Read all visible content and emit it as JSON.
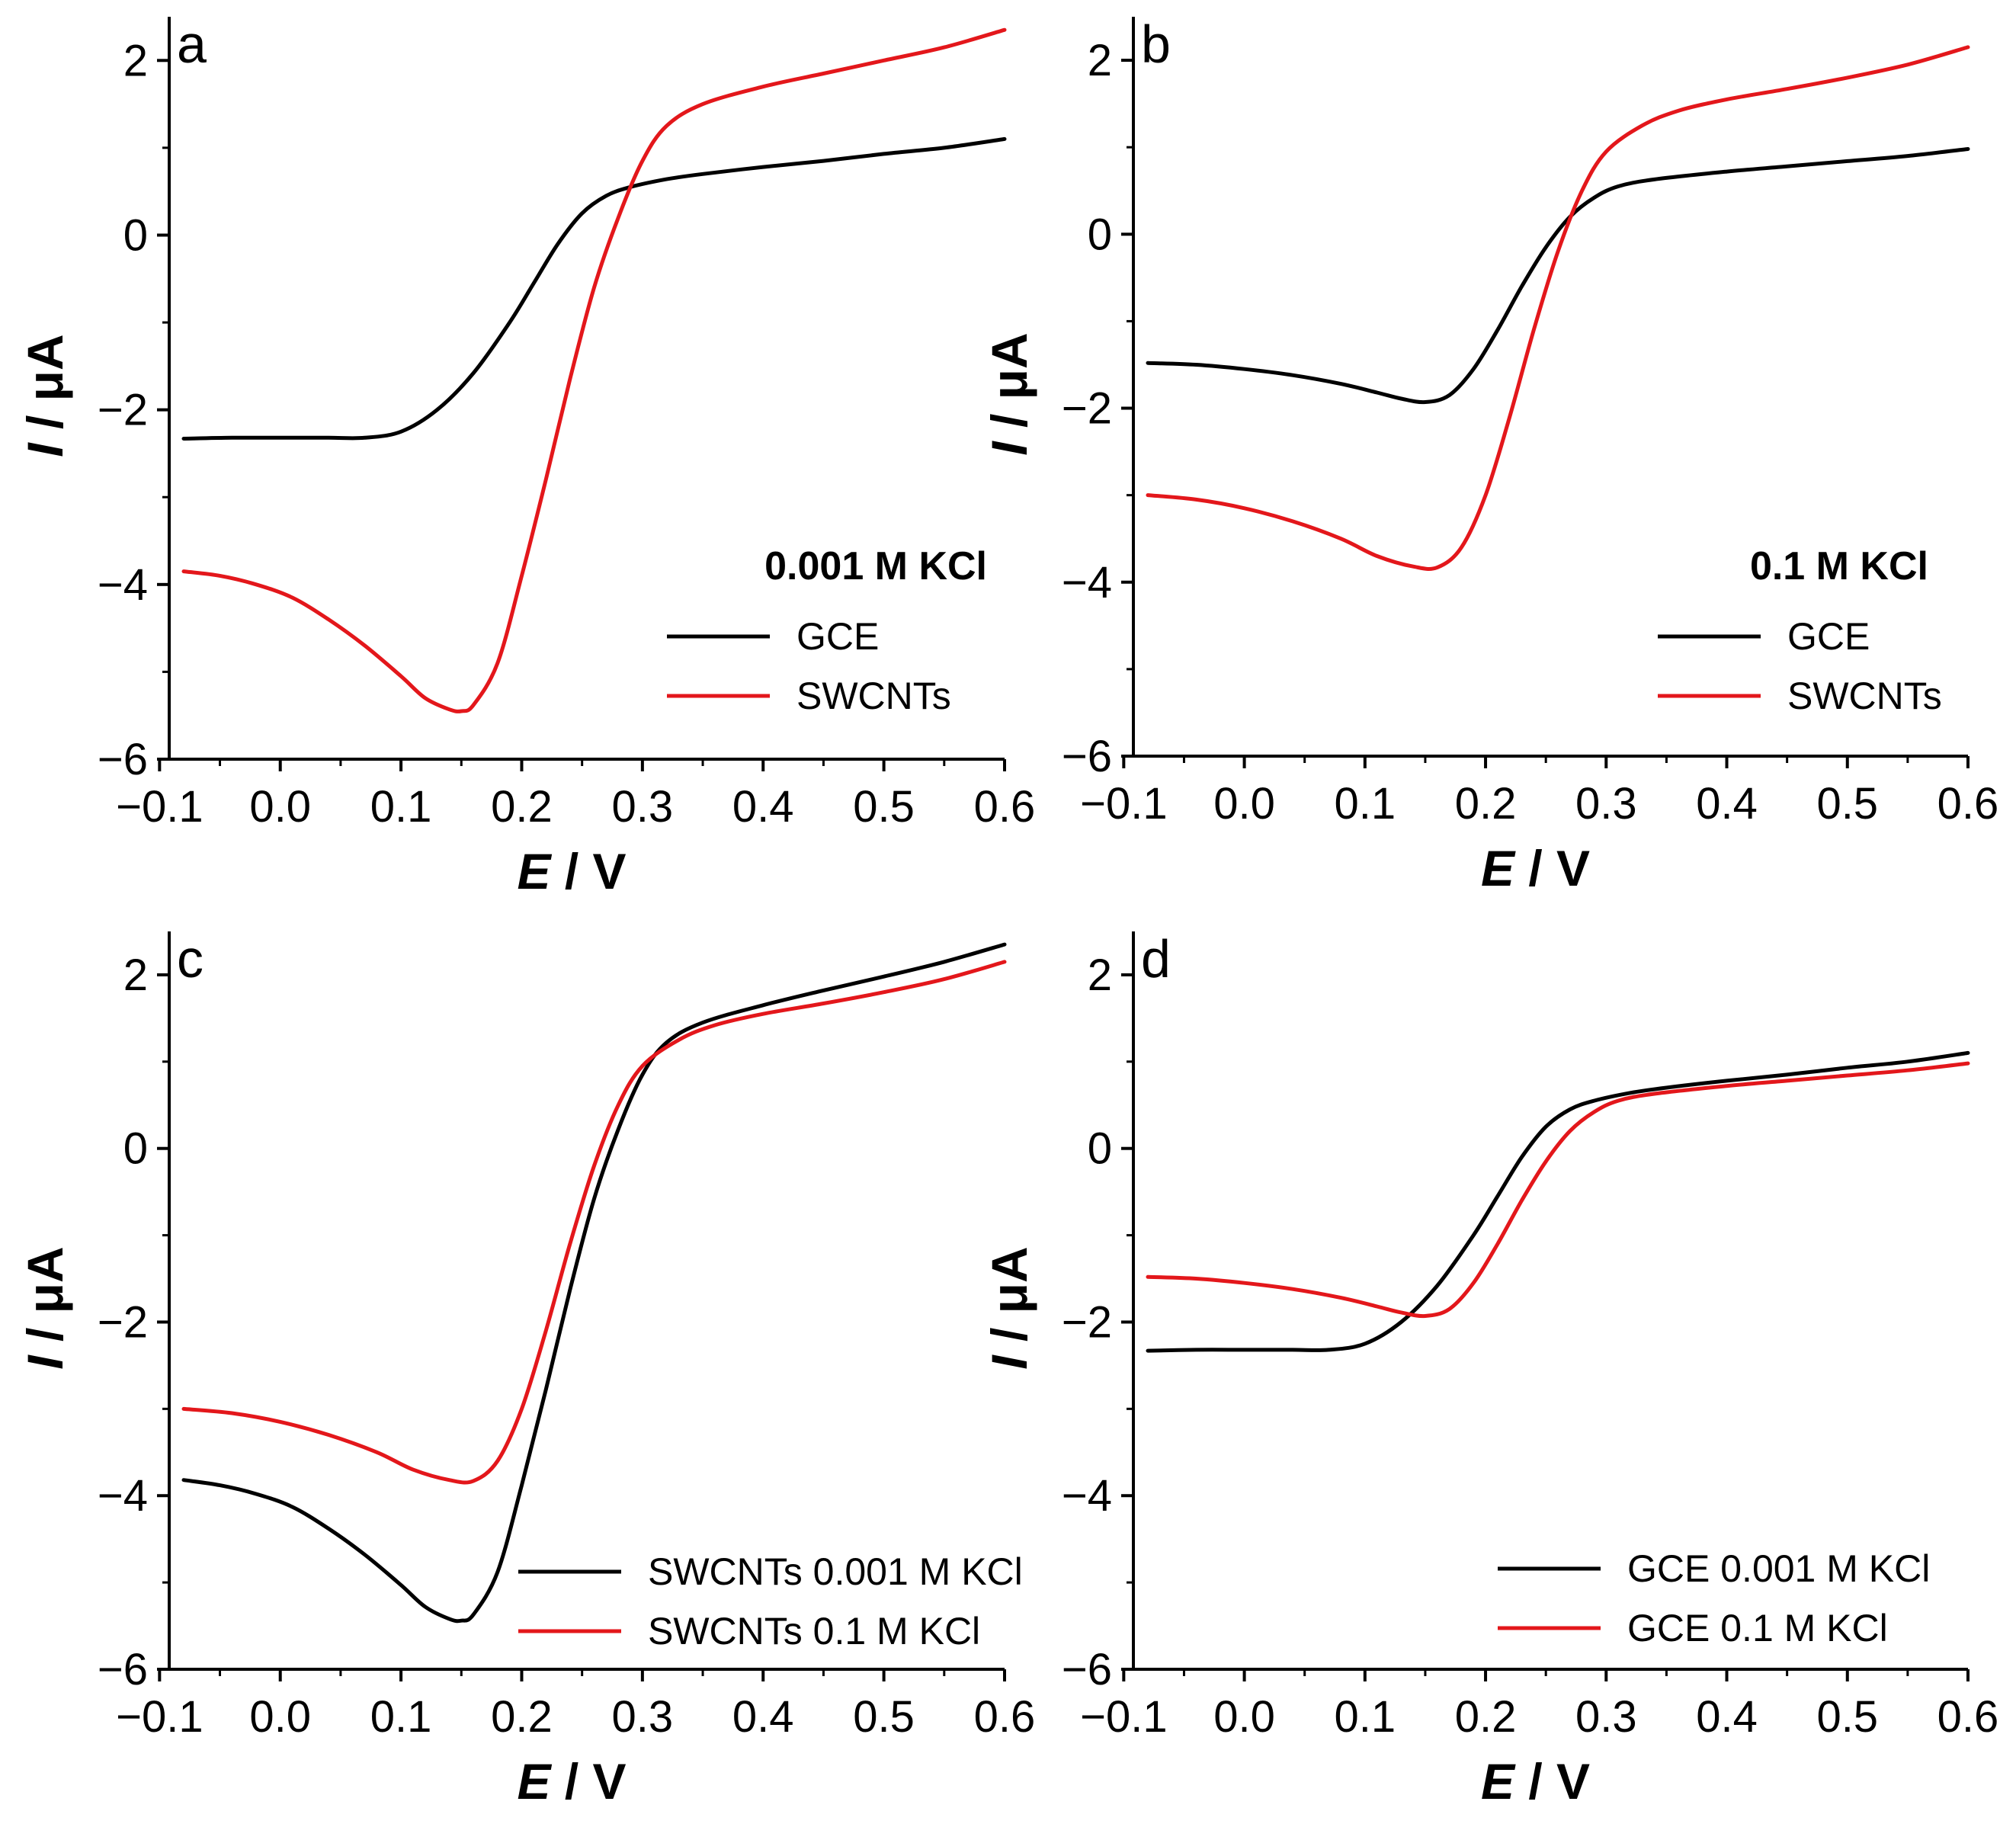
{
  "colors": {
    "black_series": "#000000",
    "red_series": "#e3171b"
  },
  "chart_data": [
    {
      "type": "line",
      "panel_label": "a",
      "condition_label": "0.001 M KCl",
      "xlabel_italic": "E",
      "xlabel_unit": " / V",
      "ylabel_italic": "I",
      "ylabel_unit": " / μA",
      "xlim": [
        -0.1,
        0.6
      ],
      "ylim": [
        -6,
        2.5
      ],
      "xticks": [
        -0.1,
        0.0,
        0.1,
        0.2,
        0.3,
        0.4,
        0.5,
        0.6
      ],
      "xtick_labels": [
        "−0.1",
        "0.0",
        "0.1",
        "0.2",
        "0.3",
        "0.4",
        "0.5",
        "0.6"
      ],
      "yticks": [
        -6,
        -4,
        -2,
        0,
        2
      ],
      "ytick_labels": [
        "−6",
        "−4",
        "−2",
        "0",
        "2"
      ],
      "legend_position": "bottom-right",
      "series": [
        {
          "name": "GCE",
          "color": "#000000",
          "x": [
            -0.08,
            -0.04,
            0.0,
            0.04,
            0.07,
            0.1,
            0.13,
            0.16,
            0.19,
            0.21,
            0.23,
            0.25,
            0.27,
            0.29,
            0.32,
            0.35,
            0.4,
            0.45,
            0.5,
            0.55,
            0.6
          ],
          "y": [
            -2.33,
            -2.32,
            -2.32,
            -2.32,
            -2.32,
            -2.25,
            -2.0,
            -1.58,
            -1.0,
            -0.55,
            -0.1,
            0.25,
            0.45,
            0.55,
            0.64,
            0.7,
            0.78,
            0.85,
            0.93,
            1.0,
            1.1
          ]
        },
        {
          "name": "SWCNTs",
          "color": "#e3171b",
          "x": [
            -0.08,
            -0.05,
            -0.02,
            0.01,
            0.04,
            0.07,
            0.1,
            0.12,
            0.14,
            0.15,
            0.16,
            0.18,
            0.2,
            0.22,
            0.24,
            0.26,
            0.28,
            0.3,
            0.32,
            0.35,
            0.4,
            0.45,
            0.5,
            0.55,
            0.6
          ],
          "y": [
            -3.85,
            -3.9,
            -4.0,
            -4.15,
            -4.4,
            -4.7,
            -5.05,
            -5.3,
            -5.43,
            -5.45,
            -5.38,
            -4.9,
            -3.9,
            -2.8,
            -1.65,
            -0.6,
            0.2,
            0.85,
            1.25,
            1.5,
            1.7,
            1.85,
            2.0,
            2.15,
            2.35
          ]
        }
      ]
    },
    {
      "type": "line",
      "panel_label": "b",
      "condition_label": "0.1 M KCl",
      "xlabel_italic": "E",
      "xlabel_unit": " / V",
      "ylabel_italic": "I",
      "ylabel_unit": " / μA",
      "xlim": [
        -0.1,
        0.6
      ],
      "ylim": [
        -6,
        2.5
      ],
      "xticks": [
        -0.1,
        0.0,
        0.1,
        0.2,
        0.3,
        0.4,
        0.5,
        0.6
      ],
      "xtick_labels": [
        "−0.1",
        "0.0",
        "0.1",
        "0.2",
        "0.3",
        "0.4",
        "0.5",
        "0.6"
      ],
      "yticks": [
        -6,
        -4,
        -2,
        0,
        2
      ],
      "ytick_labels": [
        "−6",
        "−4",
        "−2",
        "0",
        "2"
      ],
      "legend_position": "bottom-right",
      "series": [
        {
          "name": "GCE",
          "color": "#000000",
          "x": [
            -0.08,
            -0.04,
            0.0,
            0.04,
            0.08,
            0.11,
            0.13,
            0.15,
            0.17,
            0.19,
            0.21,
            0.23,
            0.25,
            0.27,
            0.29,
            0.31,
            0.34,
            0.4,
            0.45,
            0.5,
            0.55,
            0.6
          ],
          "y": [
            -1.48,
            -1.5,
            -1.55,
            -1.62,
            -1.72,
            -1.82,
            -1.89,
            -1.93,
            -1.85,
            -1.55,
            -1.1,
            -0.6,
            -0.15,
            0.2,
            0.42,
            0.55,
            0.63,
            0.72,
            0.78,
            0.84,
            0.9,
            0.98
          ]
        },
        {
          "name": "SWCNTs",
          "color": "#e3171b",
          "x": [
            -0.08,
            -0.04,
            0.0,
            0.04,
            0.08,
            0.11,
            0.14,
            0.16,
            0.18,
            0.2,
            0.22,
            0.24,
            0.26,
            0.28,
            0.3,
            0.33,
            0.36,
            0.4,
            0.45,
            0.5,
            0.55,
            0.6
          ],
          "y": [
            -3.0,
            -3.05,
            -3.15,
            -3.3,
            -3.5,
            -3.7,
            -3.82,
            -3.83,
            -3.6,
            -3.0,
            -2.1,
            -1.1,
            -0.2,
            0.5,
            0.95,
            1.25,
            1.42,
            1.55,
            1.67,
            1.8,
            1.95,
            2.15
          ]
        }
      ]
    },
    {
      "type": "line",
      "panel_label": "c",
      "condition_label": "",
      "xlabel_italic": "E",
      "xlabel_unit": " / V",
      "ylabel_italic": "I",
      "ylabel_unit": " / μA",
      "xlim": [
        -0.1,
        0.6
      ],
      "ylim": [
        -6,
        2.5
      ],
      "xticks": [
        -0.1,
        0.0,
        0.1,
        0.2,
        0.3,
        0.4,
        0.5,
        0.6
      ],
      "xtick_labels": [
        "−0.1",
        "0.0",
        "0.1",
        "0.2",
        "0.3",
        "0.4",
        "0.5",
        "0.6"
      ],
      "yticks": [
        -6,
        -4,
        -2,
        0,
        2
      ],
      "ytick_labels": [
        "−6",
        "−4",
        "−2",
        "0",
        "2"
      ],
      "legend_position": "bottom-right",
      "series": [
        {
          "name": "SWCNTs 0.001 M KCl",
          "color": "#000000",
          "x": [
            -0.08,
            -0.05,
            -0.02,
            0.01,
            0.04,
            0.07,
            0.1,
            0.12,
            0.14,
            0.15,
            0.16,
            0.18,
            0.2,
            0.22,
            0.24,
            0.26,
            0.28,
            0.3,
            0.32,
            0.35,
            0.4,
            0.45,
            0.5,
            0.55,
            0.6
          ],
          "y": [
            -3.82,
            -3.88,
            -3.98,
            -4.13,
            -4.38,
            -4.68,
            -5.03,
            -5.28,
            -5.42,
            -5.44,
            -5.37,
            -4.88,
            -3.88,
            -2.78,
            -1.63,
            -0.58,
            0.22,
            0.85,
            1.22,
            1.45,
            1.65,
            1.82,
            1.98,
            2.15,
            2.35
          ]
        },
        {
          "name": "SWCNTs 0.1 M KCl",
          "color": "#e3171b",
          "x": [
            -0.08,
            -0.04,
            0.0,
            0.04,
            0.08,
            0.11,
            0.14,
            0.16,
            0.18,
            0.2,
            0.22,
            0.24,
            0.26,
            0.28,
            0.3,
            0.33,
            0.36,
            0.4,
            0.45,
            0.5,
            0.55,
            0.6
          ],
          "y": [
            -3.0,
            -3.05,
            -3.15,
            -3.3,
            -3.5,
            -3.7,
            -3.82,
            -3.83,
            -3.6,
            -3.0,
            -2.1,
            -1.1,
            -0.2,
            0.5,
            0.95,
            1.25,
            1.42,
            1.55,
            1.67,
            1.8,
            1.95,
            2.15
          ]
        }
      ]
    },
    {
      "type": "line",
      "panel_label": "d",
      "condition_label": "",
      "xlabel_italic": "E",
      "xlabel_unit": " / V",
      "ylabel_italic": "I",
      "ylabel_unit": " / μA",
      "xlim": [
        -0.1,
        0.6
      ],
      "ylim": [
        -6,
        2.5
      ],
      "xticks": [
        -0.1,
        0.0,
        0.1,
        0.2,
        0.3,
        0.4,
        0.5,
        0.6
      ],
      "xtick_labels": [
        "−0.1",
        "0.0",
        "0.1",
        "0.2",
        "0.3",
        "0.4",
        "0.5",
        "0.6"
      ],
      "yticks": [
        -6,
        -4,
        -2,
        0,
        2
      ],
      "ytick_labels": [
        "−6",
        "−4",
        "−2",
        "0",
        "2"
      ],
      "legend_position": "bottom-right",
      "series": [
        {
          "name": "GCE 0.001 M KCl",
          "color": "#000000",
          "x": [
            -0.08,
            -0.04,
            0.0,
            0.04,
            0.07,
            0.1,
            0.13,
            0.16,
            0.19,
            0.21,
            0.23,
            0.25,
            0.27,
            0.29,
            0.32,
            0.35,
            0.4,
            0.45,
            0.5,
            0.55,
            0.6
          ],
          "y": [
            -2.33,
            -2.32,
            -2.32,
            -2.32,
            -2.32,
            -2.25,
            -2.0,
            -1.58,
            -1.0,
            -0.55,
            -0.1,
            0.25,
            0.45,
            0.55,
            0.64,
            0.7,
            0.78,
            0.85,
            0.93,
            1.0,
            1.1
          ]
        },
        {
          "name": "GCE 0.1 M KCl",
          "color": "#e3171b",
          "x": [
            -0.08,
            -0.04,
            0.0,
            0.04,
            0.08,
            0.11,
            0.13,
            0.15,
            0.17,
            0.19,
            0.21,
            0.23,
            0.25,
            0.27,
            0.29,
            0.31,
            0.34,
            0.4,
            0.45,
            0.5,
            0.55,
            0.6
          ],
          "y": [
            -1.48,
            -1.5,
            -1.55,
            -1.62,
            -1.72,
            -1.82,
            -1.89,
            -1.93,
            -1.85,
            -1.55,
            -1.1,
            -0.6,
            -0.15,
            0.2,
            0.42,
            0.55,
            0.63,
            0.72,
            0.78,
            0.84,
            0.9,
            0.98
          ]
        }
      ]
    }
  ]
}
